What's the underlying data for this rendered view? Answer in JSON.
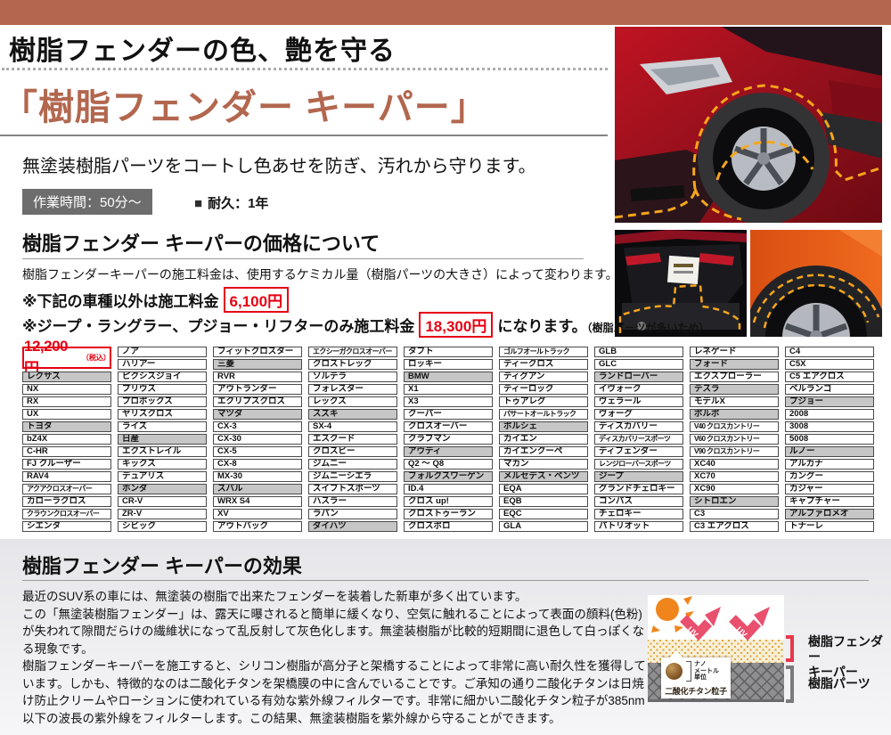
{
  "page": {
    "tagline": "樹脂フェンダーの色、艶を守る",
    "title": "「樹脂フェンダー キーパー」",
    "intro": "無塗装樹脂パーツをコートし色あせを防ぎ、汚れから守ります。",
    "work_time_badge": "作業時間：50分～",
    "durability": "耐久：1年"
  },
  "pricing": {
    "heading": "樹脂フェンダー キーパーの価格について",
    "description": "樹脂フェンダーキーパーの施工料金は、使用するケミカル量（樹脂パーツの大きさ）によって変わります。",
    "note1_prefix": "※下記の車種以外は施工料金",
    "note1_price": "6,100円",
    "note2_prefix": "※ジープ・ラングラー、プジョー・リフターのみ施工料金",
    "note2_price": "18,300円",
    "note2_suffix": "になります。",
    "note2_reason": "（樹脂パーツが多いため）",
    "table_price": "12,200円",
    "table_price_tax": "（税込）"
  },
  "table": {
    "columns": [
      [
        "#レクサス",
        "NX",
        "RX",
        "UX",
        "#トヨタ",
        "bZ4X",
        "C-HR",
        "FJ クルーザー",
        "RAV4",
        "アクアクロスオーバー",
        "カローラクロス",
        "クラウンクロスオーバー",
        "シエンタ"
      ],
      [
        "ノア",
        "ハリアー",
        "ピクシスジョイ",
        "プリウス",
        "プロボックス",
        "ヤリスクロス",
        "ライズ",
        "#日産",
        "エクストレイル",
        "キックス",
        "デュアリス",
        "#ホンダ",
        "CR-V",
        "ZR-V",
        "シビック"
      ],
      [
        "フィットクロスター",
        "#三菱",
        "RVR",
        "アウトランダー",
        "エクリプスクロス",
        "#マツダ",
        "CX-3",
        "CX-30",
        "CX-5",
        "CX-8",
        "MX-30",
        "#スバル",
        "WRX S4",
        "XV",
        "アウトバック"
      ],
      [
        "エクシーガクロスオーバー",
        "クロストレック",
        "ソルテラ",
        "フォレスター",
        "レックス",
        "#スズキ",
        "SX-4",
        "エスクード",
        "クロスビー",
        "ジムニー",
        "ジムニーシエラ",
        "スイフトスポーツ",
        "ハスラー",
        "ラパン",
        "#ダイハツ"
      ],
      [
        "タフト",
        "ロッキー",
        "#BMW",
        "X1",
        "X3",
        "クーパー",
        "クロスオーバー",
        "クラブマン",
        "#アウディ",
        "Q2 ～ Q8",
        "#フォルクスワーゲン",
        "ID.4",
        "クロス up!",
        "クロストゥーラン",
        "クロスポロ"
      ],
      [
        "ゴルフオールトラック",
        "ティークロス",
        "ティグアン",
        "ティーロック",
        "トゥアレグ",
        "パサートオールトラック",
        "#ポルシェ",
        "カイエン",
        "カイエンクーペ",
        "マカン",
        "#メルセデス・ベンツ",
        "EQA",
        "EQB",
        "EQC",
        "GLA"
      ],
      [
        "GLB",
        "GLC",
        "#ランドローバー",
        "イヴォーク",
        "ヴェラール",
        "ヴォーグ",
        "ディスカバリー",
        "ディスカバリースポーツ",
        "ディフェンダー",
        "レンジローバースポーツ",
        "#ジープ",
        "グランドチェロキー",
        "コンパス",
        "チェロキー",
        "パトリオット"
      ],
      [
        "レネゲード",
        "#フォード",
        "エクスプローラー",
        "#テスラ",
        "モデルX",
        "#ボルボ",
        "V40 クロスカントリー",
        "V60 クロスカントリー",
        "V90 クロスカントリー",
        "XC40",
        "XC70",
        "XC90",
        "#シトロエン",
        "C3",
        "C3 エアクロス"
      ],
      [
        "C4",
        "C5X",
        "C5 エアクロス",
        "ベルランゴ",
        "#プジョー",
        "2008",
        "3008",
        "5008",
        "#ルノー",
        "アルカナ",
        "カングー",
        "カジャー",
        "キャプチャー",
        "#アルファロメオ",
        "トナーレ"
      ]
    ]
  },
  "effect": {
    "heading": "樹脂フェンダー キーパーの効果",
    "paragraphs": [
      "最近のSUV系の車には、無塗装の樹脂で出来たフェンダーを装着した新車が多く出ています。",
      "この「無塗装樹脂フェンダー」は、露天に曝されると簡単に緩くなり、空気に触れることによって表面の顔料(色粉)が失われて隙間だらけの繊維状になって乱反射して灰色化します。無塗装樹脂が比較的短期間に退色して白っぽくなる現象です。",
      "樹脂フェンダーキーパーを施工すると、シリコン樹脂が高分子と架橋することによって非常に高い耐久性を獲得しています。しかも、特徴的なのは二酸化チタンを架橋膜の中に含んでいることです。ご承知の通り二酸化チタンは日焼け防止クリームやローションに使われている有効な紫外線フィルターです。非常に細かい二酸化チタン粒子が385nm以下の波長の紫外線をフィルターします。この結果、無塗装樹脂を紫外線から守ることができます。"
    ],
    "diagram": {
      "uv_label": "UV",
      "keeper_label_1": "樹脂フェンダー",
      "keeper_label_2": "キーパー",
      "parts_label": "樹脂パーツ",
      "particle_label": "二酸化チタン粒子",
      "nano_lines": [
        "ナノ",
        "メートル",
        "単位"
      ]
    }
  },
  "colors": {
    "brand_brown": "#b2674e",
    "price_red": "#e60012",
    "uv_pink": "#e8506e",
    "bracket_red": "#e8374a",
    "bracket_gray": "#7a7a7c",
    "dash_orange": "#f7a61b",
    "header_cell_gray": "#c6c6c6"
  }
}
